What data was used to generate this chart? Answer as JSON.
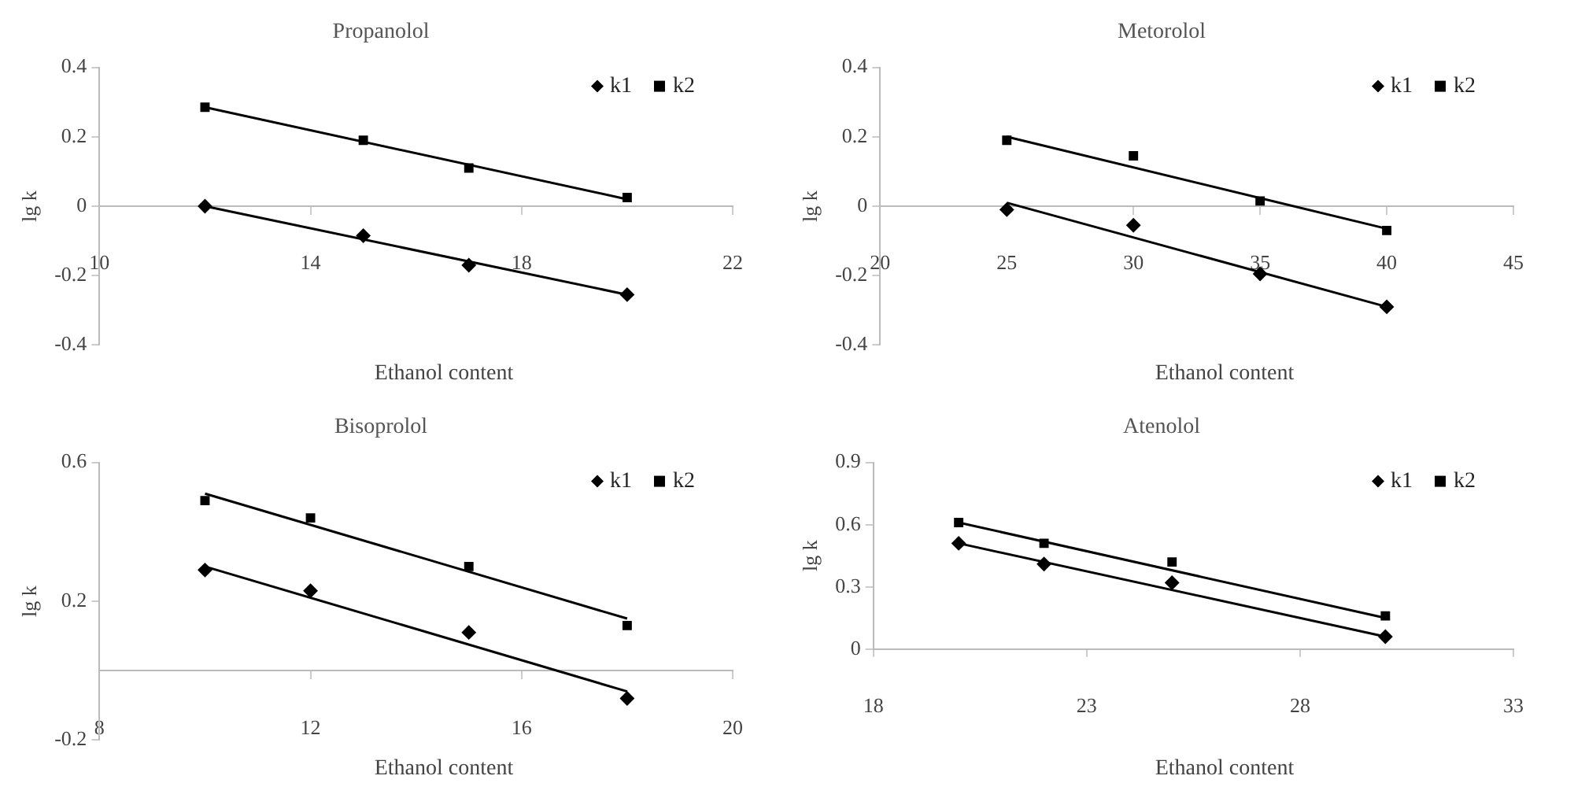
{
  "chart_data": [
    {
      "type": "scatter",
      "title": "Propanolol",
      "xlabel": "Ethanol content",
      "ylabel": "lg k",
      "xlim": [
        10,
        22
      ],
      "xticks": [
        10,
        14,
        18,
        22
      ],
      "ylim": [
        -0.4,
        0.4
      ],
      "yticks": [
        -0.4,
        -0.2,
        0,
        0.2,
        0.4
      ],
      "grid": false,
      "legend": "top right",
      "series": [
        {
          "name": "k1",
          "color": "#000000",
          "marker": "diamond",
          "x": [
            12,
            15,
            17,
            20
          ],
          "values": [
            0,
            -0.085,
            -0.17,
            -0.255
          ]
        },
        {
          "name": "k2",
          "color": "#000000",
          "marker": "square",
          "x": [
            12,
            15,
            17,
            20
          ],
          "values": [
            0.285,
            0.19,
            0.11,
            0.025
          ]
        },
        {
          "type": "line",
          "color": "#000000",
          "marker": "none",
          "x": [
            12,
            20
          ],
          "values": [
            0,
            -0.255
          ]
        },
        {
          "type": "line",
          "color": "#000000",
          "marker": "none",
          "x": [
            12,
            20
          ],
          "values": [
            0.285,
            0.02
          ]
        }
      ]
    },
    {
      "type": "scatter",
      "title": "Metorolol",
      "xlabel": "Ethanol content",
      "ylabel": "lg k",
      "xlim": [
        20,
        45
      ],
      "xticks": [
        20,
        25,
        30,
        35,
        40,
        45
      ],
      "ylim": [
        -0.4,
        0.4
      ],
      "yticks": [
        -0.4,
        -0.2,
        0,
        0.2,
        0.4
      ],
      "grid": false,
      "legend": "top right",
      "series": [
        {
          "name": "k1",
          "color": "#000000",
          "marker": "diamond",
          "x": [
            25,
            30,
            35,
            40
          ],
          "values": [
            -0.01,
            -0.055,
            -0.195,
            -0.29
          ]
        },
        {
          "name": "k2",
          "color": "#000000",
          "marker": "square",
          "x": [
            25,
            30,
            35,
            40
          ],
          "values": [
            0.19,
            0.145,
            0.015,
            -0.07
          ]
        },
        {
          "type": "line",
          "color": "#000000",
          "marker": "none",
          "x": [
            25,
            40
          ],
          "values": [
            0.01,
            -0.29
          ]
        },
        {
          "type": "line",
          "color": "#000000",
          "marker": "none",
          "x": [
            25,
            40
          ],
          "values": [
            0.2,
            -0.065
          ]
        }
      ]
    },
    {
      "type": "scatter",
      "title": "Bisoprolol",
      "xlabel": "Ethanol content",
      "ylabel": "lg k",
      "xlim": [
        8,
        20
      ],
      "xticks": [
        8,
        12,
        16,
        20
      ],
      "ylim": [
        -0.2,
        0.6
      ],
      "yticks": [
        -0.2,
        0.2,
        0.6
      ],
      "grid": false,
      "legend": "top right",
      "series": [
        {
          "name": "k1",
          "color": "#000000",
          "marker": "diamond",
          "x": [
            10,
            12,
            15,
            18
          ],
          "values": [
            0.29,
            0.23,
            0.11,
            -0.08
          ]
        },
        {
          "name": "k2",
          "color": "#000000",
          "marker": "square",
          "x": [
            10,
            12,
            15,
            18
          ],
          "values": [
            0.49,
            0.44,
            0.3,
            0.13
          ]
        },
        {
          "type": "line",
          "color": "#000000",
          "marker": "none",
          "x": [
            10,
            18
          ],
          "values": [
            0.3,
            -0.06
          ]
        },
        {
          "type": "line",
          "color": "#000000",
          "marker": "none",
          "x": [
            10,
            18
          ],
          "values": [
            0.51,
            0.15
          ]
        }
      ]
    },
    {
      "type": "scatter",
      "title": "Atenolol",
      "xlabel": "Ethanol content",
      "ylabel": "lg k",
      "xlim": [
        18,
        33
      ],
      "xticks": [
        18,
        23,
        28,
        33
      ],
      "ylim": [
        0,
        0.9
      ],
      "yticks": [
        0,
        0.3,
        0.6,
        0.9
      ],
      "grid": false,
      "legend": "top right",
      "series": [
        {
          "name": "k1",
          "color": "#000000",
          "marker": "diamond",
          "x": [
            20,
            22,
            25,
            30
          ],
          "values": [
            0.51,
            0.41,
            0.32,
            0.06
          ]
        },
        {
          "name": "k2",
          "color": "#000000",
          "marker": "square",
          "x": [
            20,
            22,
            25,
            30
          ],
          "values": [
            0.61,
            0.51,
            0.42,
            0.16
          ]
        },
        {
          "type": "line",
          "color": "#000000",
          "marker": "none",
          "x": [
            20,
            30
          ],
          "values": [
            0.51,
            0.06
          ]
        },
        {
          "type": "line",
          "color": "#000000",
          "marker": "none",
          "x": [
            20,
            30
          ],
          "values": [
            0.61,
            0.15
          ]
        }
      ]
    }
  ]
}
